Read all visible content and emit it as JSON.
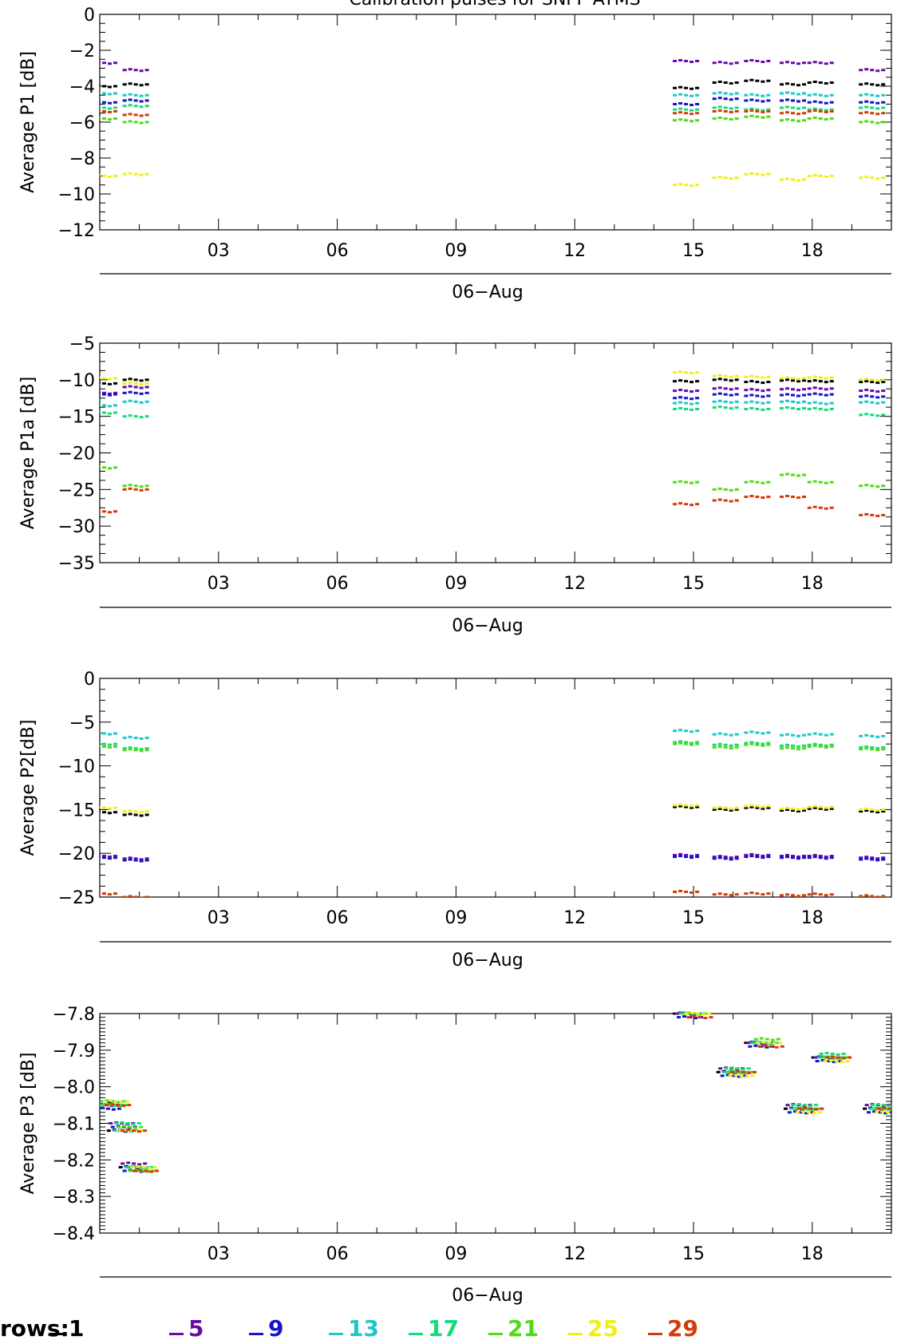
{
  "colors": {
    "row_1": "#000000",
    "row_5": "#6a0aa8",
    "row_9": "#1414c8",
    "row_13": "#1ec8c8",
    "row_17": "#14dc78",
    "row_21": "#50dc14",
    "row_25": "#f0f014",
    "row_29": "#d23c0a"
  },
  "title": "Calibration pulses for SNPP ATMS",
  "legend": {
    "label": "rows:",
    "items": [
      {
        "label": "1",
        "color": "#000000"
      },
      {
        "label": "5",
        "color": "#6a0aa8"
      },
      {
        "label": "9",
        "color": "#1414c8"
      },
      {
        "label": "13",
        "color": "#1ec8c8"
      },
      {
        "label": "17",
        "color": "#14dc78"
      },
      {
        "label": "21",
        "color": "#50dc14"
      },
      {
        "label": "25",
        "color": "#f0f014"
      },
      {
        "label": "29",
        "color": "#d23c0a"
      }
    ]
  },
  "chart_data": [
    {
      "type": "scatter",
      "title": "Calibration pulses for SNPP ATMS",
      "ylabel": "Average P1 [dB]",
      "xlabel": "06-Aug",
      "xlim": [
        0,
        20
      ],
      "ylim": [
        -12,
        0
      ],
      "yticks": [
        0,
        -2,
        -4,
        -6,
        -8,
        -10,
        -12
      ],
      "xticks": [
        3,
        6,
        9,
        12,
        15,
        18
      ],
      "xtick_labels": [
        "03",
        "06",
        "09",
        "12",
        "15",
        "18"
      ],
      "series": [
        {
          "name": "1",
          "x": [
            0.1,
            0.9,
            14.8,
            15.8,
            16.6,
            17.5,
            18.2,
            19.5
          ],
          "y": [
            -4.0,
            -3.9,
            -4.1,
            -3.8,
            -3.7,
            -3.9,
            -3.8,
            -3.9
          ]
        },
        {
          "name": "5",
          "x": [
            0.1,
            0.9,
            14.8,
            15.8,
            16.6,
            17.5,
            18.2,
            19.5
          ],
          "y": [
            -2.7,
            -3.1,
            -2.6,
            -2.7,
            -2.6,
            -2.7,
            -2.7,
            -3.1
          ]
        },
        {
          "name": "9",
          "x": [
            0.1,
            0.9,
            14.8,
            15.8,
            16.6,
            17.5,
            18.2,
            19.5
          ],
          "y": [
            -4.9,
            -4.8,
            -5.0,
            -4.7,
            -4.8,
            -4.8,
            -4.9,
            -4.9
          ]
        },
        {
          "name": "13",
          "x": [
            0.1,
            0.9,
            14.8,
            15.8,
            16.6,
            17.5,
            18.2,
            19.5
          ],
          "y": [
            -4.4,
            -4.5,
            -4.5,
            -4.4,
            -4.5,
            -4.4,
            -4.5,
            -4.5
          ]
        },
        {
          "name": "17",
          "x": [
            0.1,
            0.9,
            14.8,
            15.8,
            16.6,
            17.5,
            18.2,
            19.5
          ],
          "y": [
            -5.2,
            -5.1,
            -5.3,
            -5.2,
            -5.3,
            -5.2,
            -5.3,
            -5.2
          ]
        },
        {
          "name": "21",
          "x": [
            0.1,
            0.9,
            14.8,
            15.8,
            16.6,
            17.5,
            18.2,
            19.5
          ],
          "y": [
            -5.8,
            -6.0,
            -5.9,
            -5.8,
            -5.7,
            -5.9,
            -5.8,
            -6.0
          ]
        },
        {
          "name": "25",
          "x": [
            0.1,
            0.9,
            14.8,
            15.8,
            16.6,
            17.5,
            18.2,
            19.5
          ],
          "y": [
            -9.0,
            -8.9,
            -9.5,
            -9.1,
            -8.9,
            -9.2,
            -9.0,
            -9.1
          ]
        },
        {
          "name": "29",
          "x": [
            0.1,
            0.9,
            14.8,
            15.8,
            16.6,
            17.5,
            18.2,
            19.5
          ],
          "y": [
            -5.4,
            -5.6,
            -5.5,
            -5.4,
            -5.4,
            -5.5,
            -5.4,
            -5.5
          ]
        }
      ]
    },
    {
      "type": "scatter",
      "ylabel": "Average P1a [dB]",
      "xlabel": "06-Aug",
      "xlim": [
        0,
        20
      ],
      "ylim": [
        -35,
        -5
      ],
      "yticks": [
        -5,
        -10,
        -15,
        -20,
        -25,
        -30,
        -35
      ],
      "xticks": [
        3,
        6,
        9,
        12,
        15,
        18
      ],
      "xtick_labels": [
        "03",
        "06",
        "09",
        "12",
        "15",
        "18"
      ],
      "series": [
        {
          "name": "1",
          "x": [
            0.1,
            0.9,
            14.8,
            15.8,
            16.6,
            17.5,
            18.2,
            19.5
          ],
          "y": [
            -10.5,
            -10.0,
            -10.2,
            -10.0,
            -10.3,
            -10.1,
            -10.2,
            -10.3
          ]
        },
        {
          "name": "5",
          "x": [
            0.1,
            0.9,
            14.8,
            15.8,
            16.6,
            17.5,
            18.2,
            19.5
          ],
          "y": [
            -11.8,
            -11.0,
            -11.5,
            -11.2,
            -11.4,
            -11.3,
            -11.2,
            -11.5
          ]
        },
        {
          "name": "9",
          "x": [
            0.1,
            0.9,
            14.8,
            15.8,
            16.6,
            17.5,
            18.2,
            19.5
          ],
          "y": [
            -12.0,
            -11.8,
            -12.5,
            -12.0,
            -12.2,
            -12.1,
            -12.0,
            -12.3
          ]
        },
        {
          "name": "13",
          "x": [
            0.1,
            0.9,
            14.8,
            15.8,
            16.6,
            17.5,
            18.2,
            19.5
          ],
          "y": [
            -13.5,
            -13.0,
            -13.2,
            -13.0,
            -13.1,
            -13.0,
            -13.2,
            -13.1
          ]
        },
        {
          "name": "17",
          "x": [
            0.1,
            0.9,
            14.8,
            15.8,
            16.6,
            17.5,
            18.2,
            19.5
          ],
          "y": [
            -14.5,
            -15.0,
            -14.0,
            -13.8,
            -14.0,
            -13.9,
            -14.0,
            -14.8
          ]
        },
        {
          "name": "21",
          "x": [
            0.1,
            0.9,
            14.8,
            15.8,
            16.6,
            17.5,
            18.2,
            19.5
          ],
          "y": [
            -22.0,
            -24.5,
            -24.0,
            -25.0,
            -24.0,
            -23.0,
            -24.0,
            -24.5
          ]
        },
        {
          "name": "25",
          "x": [
            0.1,
            0.9,
            14.8,
            15.8,
            16.6,
            17.5,
            18.2,
            19.5
          ],
          "y": [
            -9.8,
            -10.5,
            -9.0,
            -9.5,
            -9.6,
            -9.8,
            -9.7,
            -10.0
          ]
        },
        {
          "name": "29",
          "x": [
            0.1,
            0.9,
            14.8,
            15.8,
            16.6,
            17.5,
            18.2,
            19.5
          ],
          "y": [
            -28.0,
            -25.0,
            -27.0,
            -26.5,
            -26.0,
            -26.0,
            -27.5,
            -28.5
          ]
        }
      ]
    },
    {
      "type": "scatter",
      "ylabel": "Average P2[dB]",
      "xlabel": "06-Aug",
      "xlim": [
        0,
        20
      ],
      "ylim": [
        -25,
        0
      ],
      "yticks": [
        0,
        -5,
        -10,
        -15,
        -20,
        -25
      ],
      "xticks": [
        3,
        6,
        9,
        12,
        15,
        18
      ],
      "xtick_labels": [
        "03",
        "06",
        "09",
        "12",
        "15",
        "18"
      ],
      "series": [
        {
          "name": "1",
          "x": [
            0.1,
            0.9,
            14.8,
            15.8,
            16.6,
            17.5,
            18.2,
            19.5
          ],
          "y": [
            -15.3,
            -15.6,
            -14.7,
            -15.0,
            -14.8,
            -15.1,
            -14.9,
            -15.2
          ]
        },
        {
          "name": "5",
          "x": [
            0.1,
            0.9,
            14.8,
            15.8,
            16.6,
            17.5,
            18.2,
            19.5
          ],
          "y": [
            -20.3,
            -20.6,
            -20.2,
            -20.4,
            -20.2,
            -20.3,
            -20.3,
            -20.5
          ]
        },
        {
          "name": "9",
          "x": [
            0.1,
            0.9,
            14.8,
            15.8,
            16.6,
            17.5,
            18.2,
            19.5
          ],
          "y": [
            -20.5,
            -20.8,
            -20.4,
            -20.6,
            -20.4,
            -20.5,
            -20.5,
            -20.7
          ]
        },
        {
          "name": "13",
          "x": [
            0.1,
            0.9,
            14.8,
            15.8,
            16.6,
            17.5,
            18.2,
            19.5
          ],
          "y": [
            -6.3,
            -6.8,
            -6.0,
            -6.4,
            -6.2,
            -6.5,
            -6.4,
            -6.6
          ]
        },
        {
          "name": "17",
          "x": [
            0.1,
            0.9,
            14.8,
            15.8,
            16.6,
            17.5,
            18.2,
            19.5
          ],
          "y": [
            -7.5,
            -8.0,
            -7.3,
            -7.6,
            -7.4,
            -7.7,
            -7.6,
            -7.9
          ]
        },
        {
          "name": "21",
          "x": [
            0.1,
            0.9,
            14.8,
            15.8,
            16.6,
            17.5,
            18.2,
            19.5
          ],
          "y": [
            -7.8,
            -8.2,
            -7.5,
            -7.9,
            -7.6,
            -8.0,
            -7.8,
            -8.1
          ]
        },
        {
          "name": "25",
          "x": [
            0.1,
            0.9,
            14.8,
            15.8,
            16.6,
            17.5,
            18.2,
            19.5
          ],
          "y": [
            -14.8,
            -15.2,
            -14.5,
            -14.8,
            -14.6,
            -14.9,
            -14.7,
            -15.0
          ]
        },
        {
          "name": "29",
          "x": [
            0.1,
            0.9,
            14.8,
            15.8,
            16.6,
            17.5,
            18.2,
            19.5
          ],
          "y": [
            -24.6,
            -25.0,
            -24.4,
            -24.7,
            -24.6,
            -24.8,
            -24.7,
            -24.9
          ]
        }
      ]
    },
    {
      "type": "scatter",
      "ylabel": "Average P3 [dB]",
      "xlabel": "06-Aug",
      "xlim": [
        0,
        20
      ],
      "ylim": [
        -8.4,
        -7.8
      ],
      "yticks": [
        -7.8,
        -7.9,
        -8.0,
        -8.1,
        -8.2,
        -8.3,
        -8.4
      ],
      "ytick_labels": [
        "-7.8",
        "-7.9",
        "-8.0",
        "-8.1",
        "-8.2",
        "-8.3",
        "-8.4"
      ],
      "xticks": [
        3,
        6,
        9,
        12,
        15,
        18
      ],
      "xtick_labels": [
        "03",
        "06",
        "09",
        "12",
        "15",
        "18"
      ],
      "series": [
        {
          "name": "1",
          "x": [
            0.1,
            0.5,
            0.8,
            14.8,
            15.9,
            16.6,
            17.6,
            18.3,
            19.6
          ],
          "y": [
            -8.04,
            -8.12,
            -8.22,
            -7.8,
            -7.96,
            -7.88,
            -8.06,
            -7.92,
            -8.06
          ]
        },
        {
          "name": "5",
          "x": [
            0.15,
            0.55,
            0.85,
            14.85,
            15.95,
            16.65,
            17.65,
            18.35,
            19.65
          ],
          "y": [
            -8.05,
            -8.1,
            -8.21,
            -7.8,
            -7.95,
            -7.88,
            -8.05,
            -7.92,
            -8.05
          ]
        },
        {
          "name": "9",
          "x": [
            0.2,
            0.6,
            0.9,
            14.9,
            16.0,
            16.7,
            17.7,
            18.4,
            19.7
          ],
          "y": [
            -8.06,
            -8.11,
            -8.23,
            -7.81,
            -7.97,
            -7.89,
            -8.07,
            -7.93,
            -8.07
          ]
        },
        {
          "name": "13",
          "x": [
            0.25,
            0.65,
            0.95,
            14.95,
            16.05,
            16.75,
            17.75,
            18.45,
            19.75
          ],
          "y": [
            -8.05,
            -8.12,
            -8.22,
            -7.8,
            -7.96,
            -7.88,
            -8.06,
            -7.92,
            -8.06
          ]
        },
        {
          "name": "17",
          "x": [
            0.3,
            0.7,
            1.0,
            15.0,
            16.1,
            16.8,
            17.8,
            18.5,
            19.8
          ],
          "y": [
            -8.04,
            -8.1,
            -8.22,
            -7.8,
            -7.95,
            -7.88,
            -8.05,
            -7.91,
            -8.05
          ]
        },
        {
          "name": "21",
          "x": [
            0.35,
            0.75,
            1.05,
            15.05,
            16.15,
            16.85,
            17.85,
            18.55,
            19.85
          ],
          "y": [
            -8.05,
            -8.11,
            -8.23,
            -7.8,
            -7.96,
            -7.87,
            -8.06,
            -7.92,
            -8.06
          ]
        },
        {
          "name": "25",
          "x": [
            0.4,
            0.8,
            1.1,
            15.1,
            16.2,
            16.9,
            17.9,
            18.6,
            19.9
          ],
          "y": [
            -8.04,
            -8.12,
            -8.22,
            -7.8,
            -7.97,
            -7.88,
            -8.07,
            -7.93,
            -8.07
          ]
        },
        {
          "name": "29",
          "x": [
            0.45,
            0.85,
            1.15,
            15.15,
            16.25,
            16.95,
            17.95,
            18.65,
            19.95
          ],
          "y": [
            -8.05,
            -8.12,
            -8.23,
            -7.81,
            -7.96,
            -7.89,
            -8.06,
            -7.92,
            -8.06
          ]
        }
      ]
    }
  ]
}
